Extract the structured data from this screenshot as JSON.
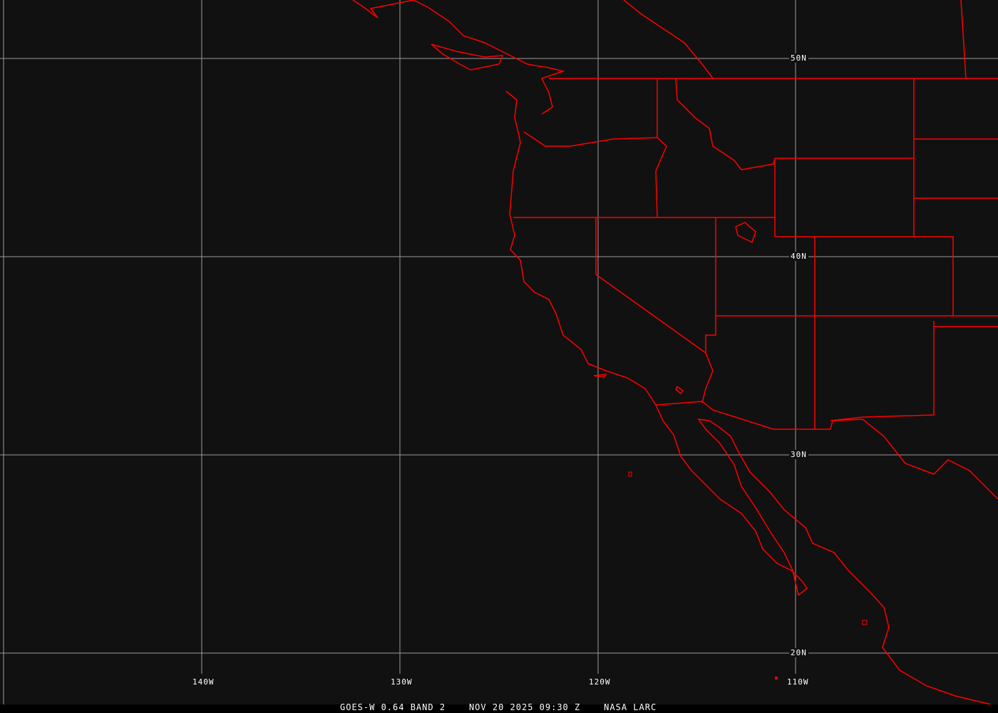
{
  "map": {
    "latitude_labels": [
      "50N",
      "40N",
      "30N",
      "20N"
    ],
    "longitude_labels": [
      "140W",
      "130W",
      "120W",
      "110W"
    ],
    "caption": {
      "satellite": "GOES-W 0.64 BAND 2",
      "datetime": "NOV 20 2025 09:30 Z",
      "source": "NASA LARC"
    },
    "colors": {
      "background": "#111111",
      "grid": "#9a9a9a",
      "boundaries": "#ff0000",
      "text": "#ffffff"
    }
  }
}
